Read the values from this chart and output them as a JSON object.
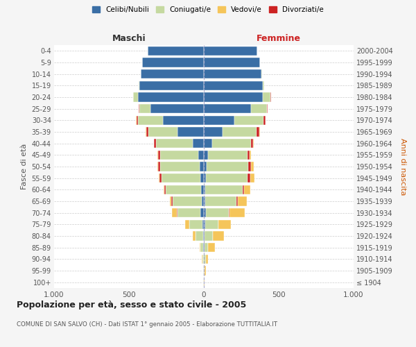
{
  "age_groups": [
    "100+",
    "95-99",
    "90-94",
    "85-89",
    "80-84",
    "75-79",
    "70-74",
    "65-69",
    "60-64",
    "55-59",
    "50-54",
    "45-49",
    "40-44",
    "35-39",
    "30-34",
    "25-29",
    "20-24",
    "15-19",
    "10-14",
    "5-9",
    "0-4"
  ],
  "birth_years": [
    "≤ 1904",
    "1905-1909",
    "1910-1914",
    "1915-1919",
    "1920-1924",
    "1925-1929",
    "1930-1934",
    "1935-1939",
    "1940-1944",
    "1945-1949",
    "1950-1954",
    "1955-1959",
    "1960-1964",
    "1965-1969",
    "1970-1974",
    "1975-1979",
    "1980-1984",
    "1985-1989",
    "1990-1994",
    "1995-1999",
    "2000-2004"
  ],
  "colors": {
    "celibi": "#3a6ea5",
    "coniugati": "#c5d9a0",
    "vedovi": "#f5c55a",
    "divorziati": "#cc2222"
  },
  "males": {
    "celibi": [
      1,
      1,
      2,
      3,
      4,
      10,
      25,
      12,
      18,
      22,
      28,
      38,
      75,
      175,
      275,
      355,
      440,
      430,
      420,
      410,
      375
    ],
    "coniugati": [
      2,
      4,
      8,
      22,
      50,
      85,
      150,
      195,
      235,
      260,
      265,
      255,
      245,
      195,
      165,
      75,
      30,
      4,
      2,
      0,
      0
    ],
    "vedovi": [
      0,
      0,
      2,
      5,
      18,
      28,
      32,
      8,
      4,
      4,
      4,
      3,
      2,
      2,
      2,
      2,
      2,
      0,
      0,
      0,
      0
    ],
    "divorziati": [
      0,
      0,
      0,
      0,
      0,
      0,
      4,
      10,
      10,
      14,
      14,
      12,
      12,
      16,
      10,
      4,
      2,
      0,
      0,
      0,
      0
    ]
  },
  "females": {
    "celibi": [
      0,
      1,
      2,
      3,
      5,
      7,
      12,
      8,
      8,
      12,
      18,
      28,
      55,
      125,
      205,
      315,
      395,
      395,
      385,
      375,
      355
    ],
    "coniugati": [
      1,
      4,
      10,
      25,
      55,
      88,
      155,
      210,
      250,
      280,
      280,
      265,
      260,
      225,
      195,
      105,
      50,
      8,
      2,
      0,
      0
    ],
    "vedovi": [
      2,
      8,
      18,
      45,
      70,
      85,
      100,
      60,
      38,
      28,
      18,
      8,
      4,
      2,
      2,
      2,
      2,
      0,
      0,
      0,
      0
    ],
    "divorziati": [
      0,
      0,
      0,
      0,
      2,
      2,
      4,
      8,
      12,
      16,
      16,
      14,
      14,
      22,
      12,
      5,
      2,
      0,
      0,
      0,
      0
    ]
  },
  "xlim": 1000,
  "title": "Popolazione per età, sesso e stato civile - 2005",
  "subtitle": "COMUNE DI SAN SALVO (CH) - Dati ISTAT 1° gennaio 2005 - Elaborazione TUTTITALIA.IT",
  "ylabel_left": "Fasce di età",
  "ylabel_right": "Anni di nascita",
  "xlabel_left": "Maschi",
  "xlabel_right": "Femmine",
  "legend_labels": [
    "Celibi/Nubili",
    "Coniugati/e",
    "Vedovi/e",
    "Divorziati/e"
  ],
  "background_color": "#f5f5f5",
  "plot_background": "#ffffff",
  "grid_color": "#cccccc"
}
